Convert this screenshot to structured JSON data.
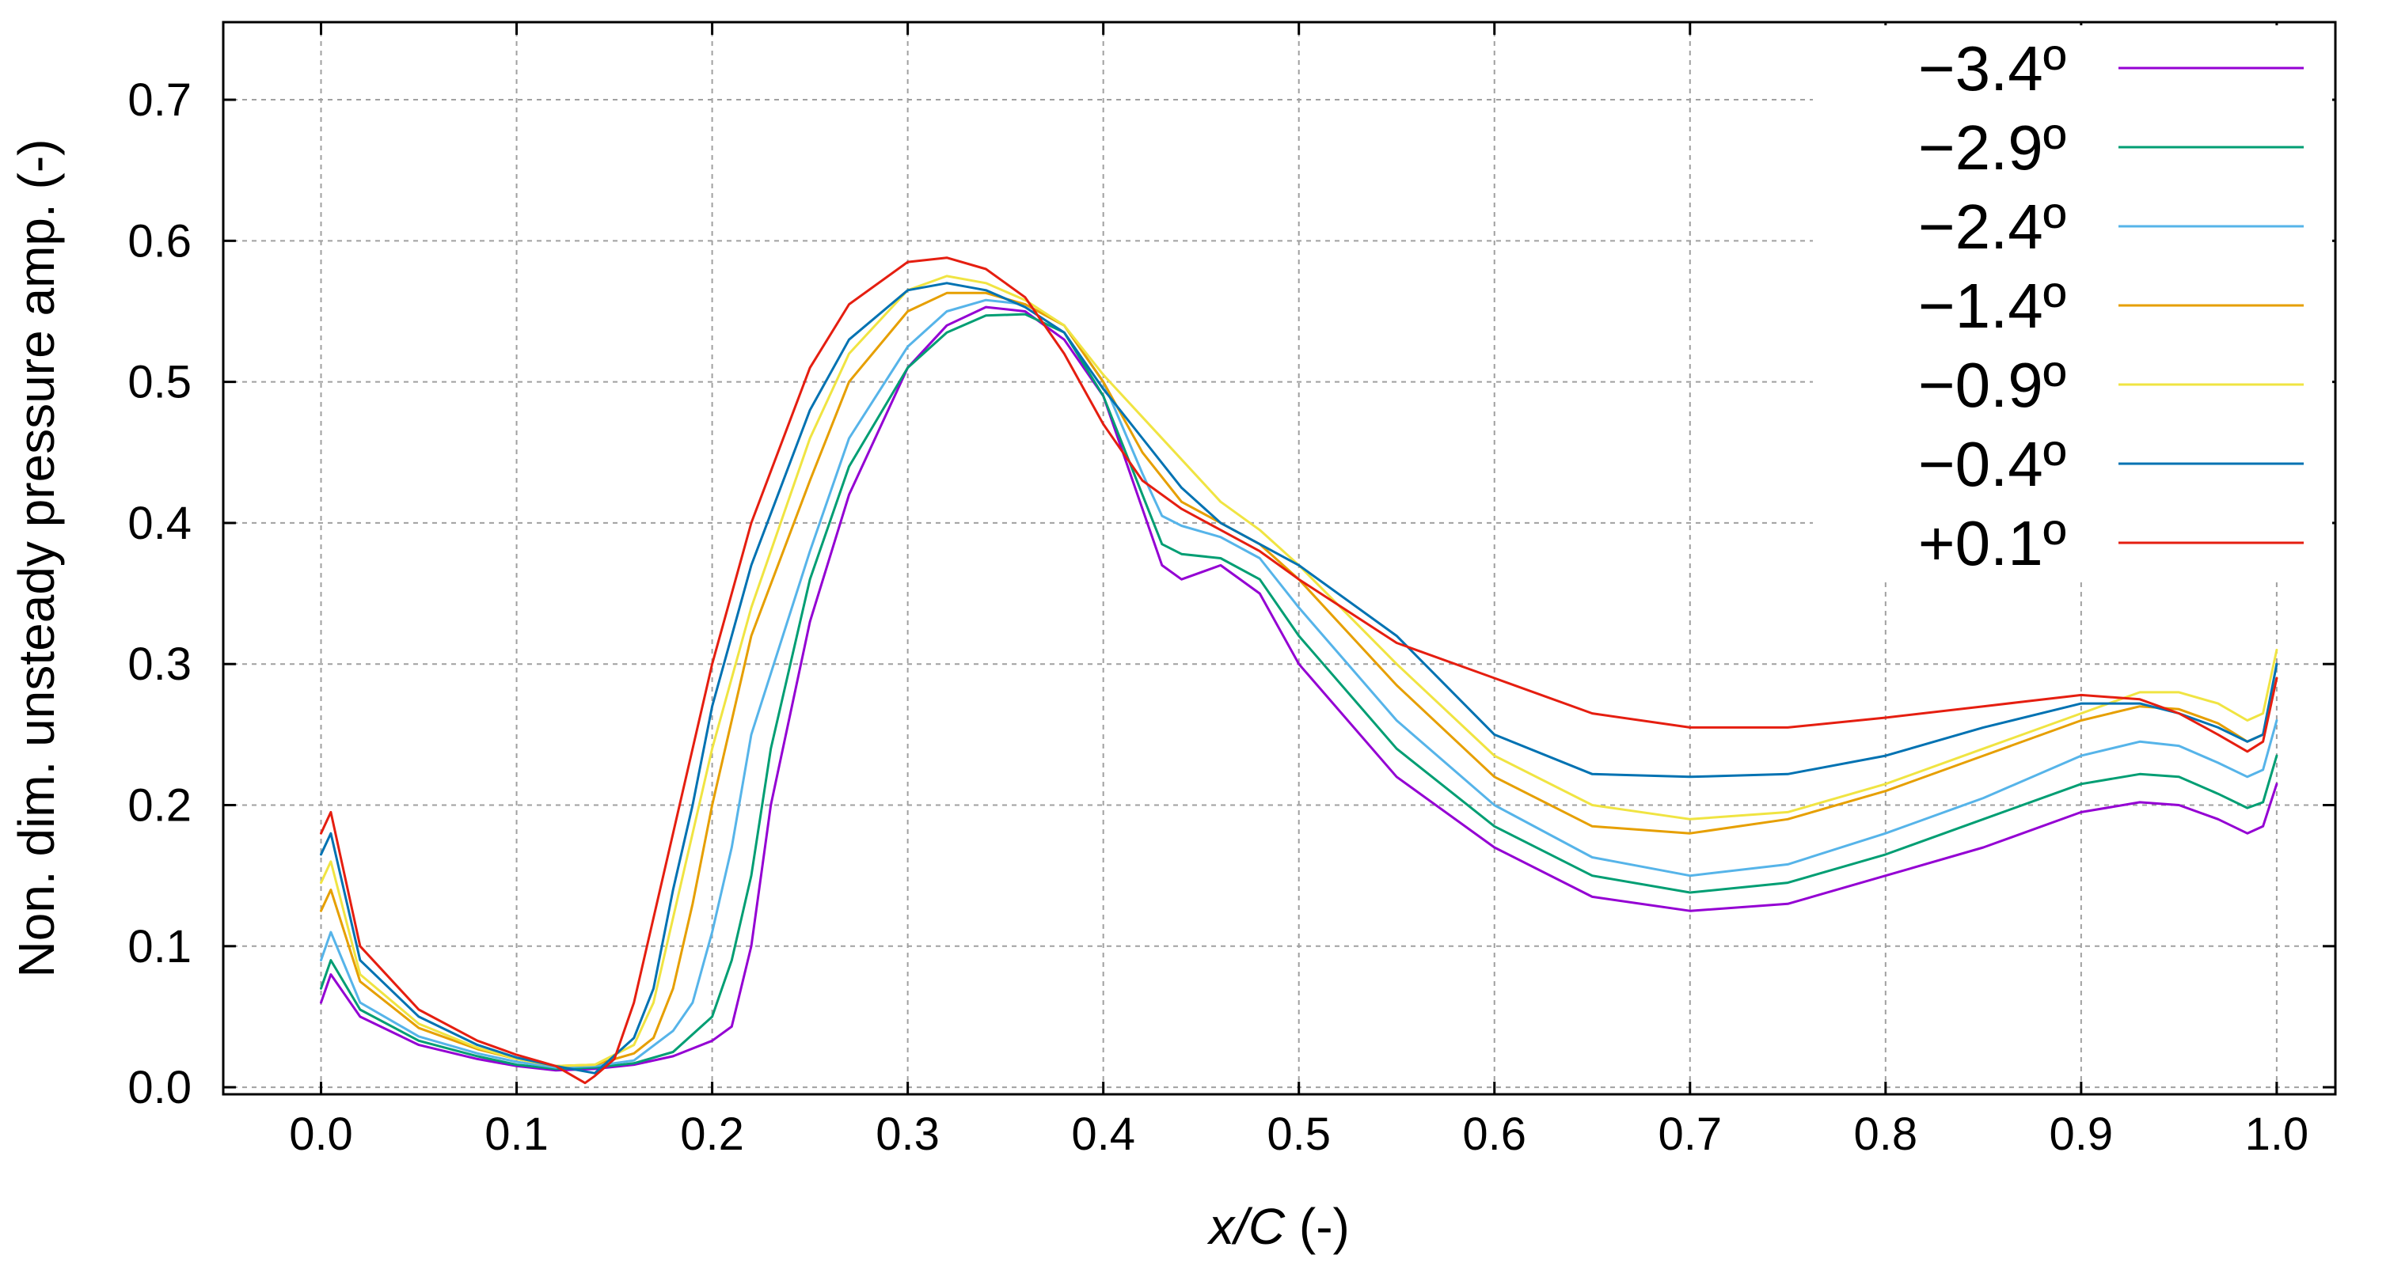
{
  "chart_data": {
    "type": "line",
    "xlabel": "x/C",
    "xlabel_unit": " (-)",
    "ylabel": "Non. dim. unsteady pressure amp. (-)",
    "xlim": [
      -0.05,
      1.03
    ],
    "ylim": [
      -0.005,
      0.755
    ],
    "xticks": [
      0.0,
      0.1,
      0.2,
      0.3,
      0.4,
      0.5,
      0.6,
      0.7,
      0.8,
      0.9,
      1.0
    ],
    "xtick_labels": [
      "0.0",
      "0.1",
      "0.2",
      "0.3",
      "0.4",
      "0.5",
      "0.6",
      "0.7",
      "0.8",
      "0.9",
      "1.0"
    ],
    "yticks": [
      0.0,
      0.1,
      0.2,
      0.3,
      0.4,
      0.5,
      0.6,
      0.7
    ],
    "ytick_labels": [
      "0.0",
      "0.1",
      "0.2",
      "0.3",
      "0.4",
      "0.5",
      "0.6",
      "0.7"
    ],
    "grid": true,
    "legend_position": "top-right",
    "series": [
      {
        "name": "−3.4º",
        "color": "#9400d3",
        "x": [
          0.0,
          0.005,
          0.02,
          0.05,
          0.08,
          0.1,
          0.12,
          0.14,
          0.16,
          0.18,
          0.2,
          0.21,
          0.22,
          0.23,
          0.25,
          0.27,
          0.3,
          0.32,
          0.34,
          0.36,
          0.38,
          0.4,
          0.42,
          0.43,
          0.44,
          0.46,
          0.48,
          0.5,
          0.55,
          0.6,
          0.65,
          0.7,
          0.75,
          0.8,
          0.85,
          0.9,
          0.93,
          0.95,
          0.97,
          0.985,
          0.993,
          1.0
        ],
        "y": [
          0.06,
          0.08,
          0.05,
          0.03,
          0.02,
          0.015,
          0.012,
          0.013,
          0.016,
          0.022,
          0.033,
          0.043,
          0.1,
          0.2,
          0.33,
          0.42,
          0.51,
          0.54,
          0.553,
          0.55,
          0.53,
          0.49,
          0.41,
          0.37,
          0.36,
          0.37,
          0.35,
          0.3,
          0.22,
          0.17,
          0.135,
          0.125,
          0.13,
          0.15,
          0.17,
          0.195,
          0.202,
          0.2,
          0.19,
          0.18,
          0.185,
          0.215
        ]
      },
      {
        "name": "−2.9º",
        "color": "#009e73",
        "x": [
          0.0,
          0.005,
          0.02,
          0.05,
          0.08,
          0.1,
          0.12,
          0.14,
          0.16,
          0.18,
          0.2,
          0.21,
          0.22,
          0.23,
          0.25,
          0.27,
          0.3,
          0.32,
          0.34,
          0.36,
          0.38,
          0.4,
          0.42,
          0.43,
          0.44,
          0.46,
          0.48,
          0.5,
          0.55,
          0.6,
          0.65,
          0.7,
          0.75,
          0.8,
          0.85,
          0.9,
          0.93,
          0.95,
          0.97,
          0.985,
          0.993,
          1.0
        ],
        "y": [
          0.07,
          0.09,
          0.055,
          0.033,
          0.022,
          0.016,
          0.013,
          0.014,
          0.017,
          0.025,
          0.05,
          0.09,
          0.15,
          0.24,
          0.36,
          0.44,
          0.51,
          0.535,
          0.547,
          0.548,
          0.535,
          0.49,
          0.42,
          0.385,
          0.378,
          0.375,
          0.36,
          0.32,
          0.24,
          0.185,
          0.15,
          0.138,
          0.145,
          0.165,
          0.19,
          0.215,
          0.222,
          0.22,
          0.208,
          0.198,
          0.202,
          0.235
        ]
      },
      {
        "name": "−2.4º",
        "color": "#56b4e9",
        "x": [
          0.0,
          0.005,
          0.02,
          0.05,
          0.08,
          0.1,
          0.12,
          0.14,
          0.16,
          0.18,
          0.19,
          0.2,
          0.21,
          0.22,
          0.25,
          0.27,
          0.3,
          0.32,
          0.34,
          0.36,
          0.38,
          0.4,
          0.42,
          0.43,
          0.44,
          0.46,
          0.48,
          0.5,
          0.55,
          0.6,
          0.65,
          0.7,
          0.75,
          0.8,
          0.85,
          0.9,
          0.93,
          0.95,
          0.97,
          0.985,
          0.993,
          1.0
        ],
        "y": [
          0.09,
          0.11,
          0.06,
          0.036,
          0.024,
          0.018,
          0.014,
          0.015,
          0.019,
          0.04,
          0.06,
          0.11,
          0.17,
          0.25,
          0.38,
          0.46,
          0.525,
          0.55,
          0.558,
          0.555,
          0.54,
          0.5,
          0.435,
          0.405,
          0.398,
          0.39,
          0.375,
          0.34,
          0.26,
          0.2,
          0.163,
          0.15,
          0.158,
          0.18,
          0.205,
          0.235,
          0.245,
          0.242,
          0.23,
          0.22,
          0.225,
          0.26
        ]
      },
      {
        "name": "−1.4º",
        "color": "#e69f00",
        "x": [
          0.0,
          0.005,
          0.02,
          0.05,
          0.08,
          0.1,
          0.12,
          0.14,
          0.16,
          0.17,
          0.18,
          0.19,
          0.2,
          0.22,
          0.25,
          0.27,
          0.3,
          0.32,
          0.34,
          0.36,
          0.38,
          0.4,
          0.42,
          0.44,
          0.46,
          0.48,
          0.5,
          0.55,
          0.6,
          0.65,
          0.7,
          0.75,
          0.8,
          0.85,
          0.9,
          0.93,
          0.95,
          0.97,
          0.985,
          0.993,
          1.0
        ],
        "y": [
          0.125,
          0.14,
          0.075,
          0.042,
          0.027,
          0.02,
          0.015,
          0.016,
          0.024,
          0.035,
          0.07,
          0.13,
          0.2,
          0.32,
          0.43,
          0.5,
          0.55,
          0.563,
          0.563,
          0.555,
          0.54,
          0.5,
          0.45,
          0.415,
          0.4,
          0.385,
          0.36,
          0.285,
          0.22,
          0.185,
          0.18,
          0.19,
          0.21,
          0.235,
          0.26,
          0.27,
          0.268,
          0.258,
          0.245,
          0.25,
          0.29
        ]
      },
      {
        "name": "−0.9º",
        "color": "#f0e442",
        "x": [
          0.0,
          0.005,
          0.02,
          0.05,
          0.08,
          0.1,
          0.12,
          0.14,
          0.16,
          0.17,
          0.18,
          0.19,
          0.2,
          0.22,
          0.25,
          0.27,
          0.3,
          0.32,
          0.34,
          0.36,
          0.38,
          0.4,
          0.42,
          0.44,
          0.46,
          0.48,
          0.5,
          0.55,
          0.6,
          0.65,
          0.7,
          0.75,
          0.8,
          0.85,
          0.9,
          0.93,
          0.95,
          0.97,
          0.985,
          0.993,
          1.0
        ],
        "y": [
          0.145,
          0.16,
          0.08,
          0.045,
          0.028,
          0.02,
          0.015,
          0.016,
          0.03,
          0.06,
          0.12,
          0.18,
          0.24,
          0.34,
          0.46,
          0.52,
          0.565,
          0.575,
          0.57,
          0.558,
          0.54,
          0.505,
          0.475,
          0.445,
          0.415,
          0.395,
          0.37,
          0.3,
          0.235,
          0.2,
          0.19,
          0.195,
          0.215,
          0.24,
          0.265,
          0.28,
          0.28,
          0.272,
          0.26,
          0.265,
          0.31
        ]
      },
      {
        "name": "−0.4º",
        "color": "#0072b2",
        "x": [
          0.0,
          0.005,
          0.02,
          0.05,
          0.08,
          0.1,
          0.12,
          0.14,
          0.16,
          0.17,
          0.18,
          0.19,
          0.2,
          0.22,
          0.25,
          0.27,
          0.3,
          0.32,
          0.34,
          0.36,
          0.38,
          0.4,
          0.42,
          0.44,
          0.46,
          0.48,
          0.5,
          0.55,
          0.6,
          0.65,
          0.7,
          0.75,
          0.8,
          0.85,
          0.9,
          0.93,
          0.95,
          0.97,
          0.985,
          0.993,
          1.0
        ],
        "y": [
          0.165,
          0.18,
          0.09,
          0.05,
          0.03,
          0.021,
          0.015,
          0.01,
          0.035,
          0.07,
          0.14,
          0.2,
          0.27,
          0.37,
          0.48,
          0.53,
          0.565,
          0.57,
          0.565,
          0.553,
          0.535,
          0.495,
          0.46,
          0.425,
          0.4,
          0.385,
          0.37,
          0.32,
          0.25,
          0.222,
          0.22,
          0.222,
          0.235,
          0.255,
          0.272,
          0.272,
          0.265,
          0.255,
          0.245,
          0.25,
          0.3
        ]
      },
      {
        "name": "+0.1º",
        "color": "#e51e10",
        "x": [
          0.0,
          0.005,
          0.02,
          0.05,
          0.08,
          0.1,
          0.12,
          0.135,
          0.14,
          0.15,
          0.16,
          0.17,
          0.18,
          0.19,
          0.2,
          0.22,
          0.25,
          0.27,
          0.3,
          0.32,
          0.34,
          0.36,
          0.38,
          0.4,
          0.42,
          0.44,
          0.46,
          0.48,
          0.5,
          0.55,
          0.6,
          0.65,
          0.7,
          0.75,
          0.8,
          0.85,
          0.9,
          0.93,
          0.95,
          0.97,
          0.985,
          0.993,
          1.0
        ],
        "y": [
          0.18,
          0.195,
          0.1,
          0.055,
          0.033,
          0.023,
          0.015,
          0.003,
          0.008,
          0.02,
          0.06,
          0.12,
          0.18,
          0.24,
          0.3,
          0.4,
          0.51,
          0.555,
          0.585,
          0.588,
          0.58,
          0.56,
          0.52,
          0.47,
          0.43,
          0.41,
          0.395,
          0.38,
          0.36,
          0.315,
          0.29,
          0.265,
          0.255,
          0.255,
          0.262,
          0.27,
          0.278,
          0.275,
          0.265,
          0.25,
          0.238,
          0.245,
          0.29
        ]
      }
    ]
  }
}
